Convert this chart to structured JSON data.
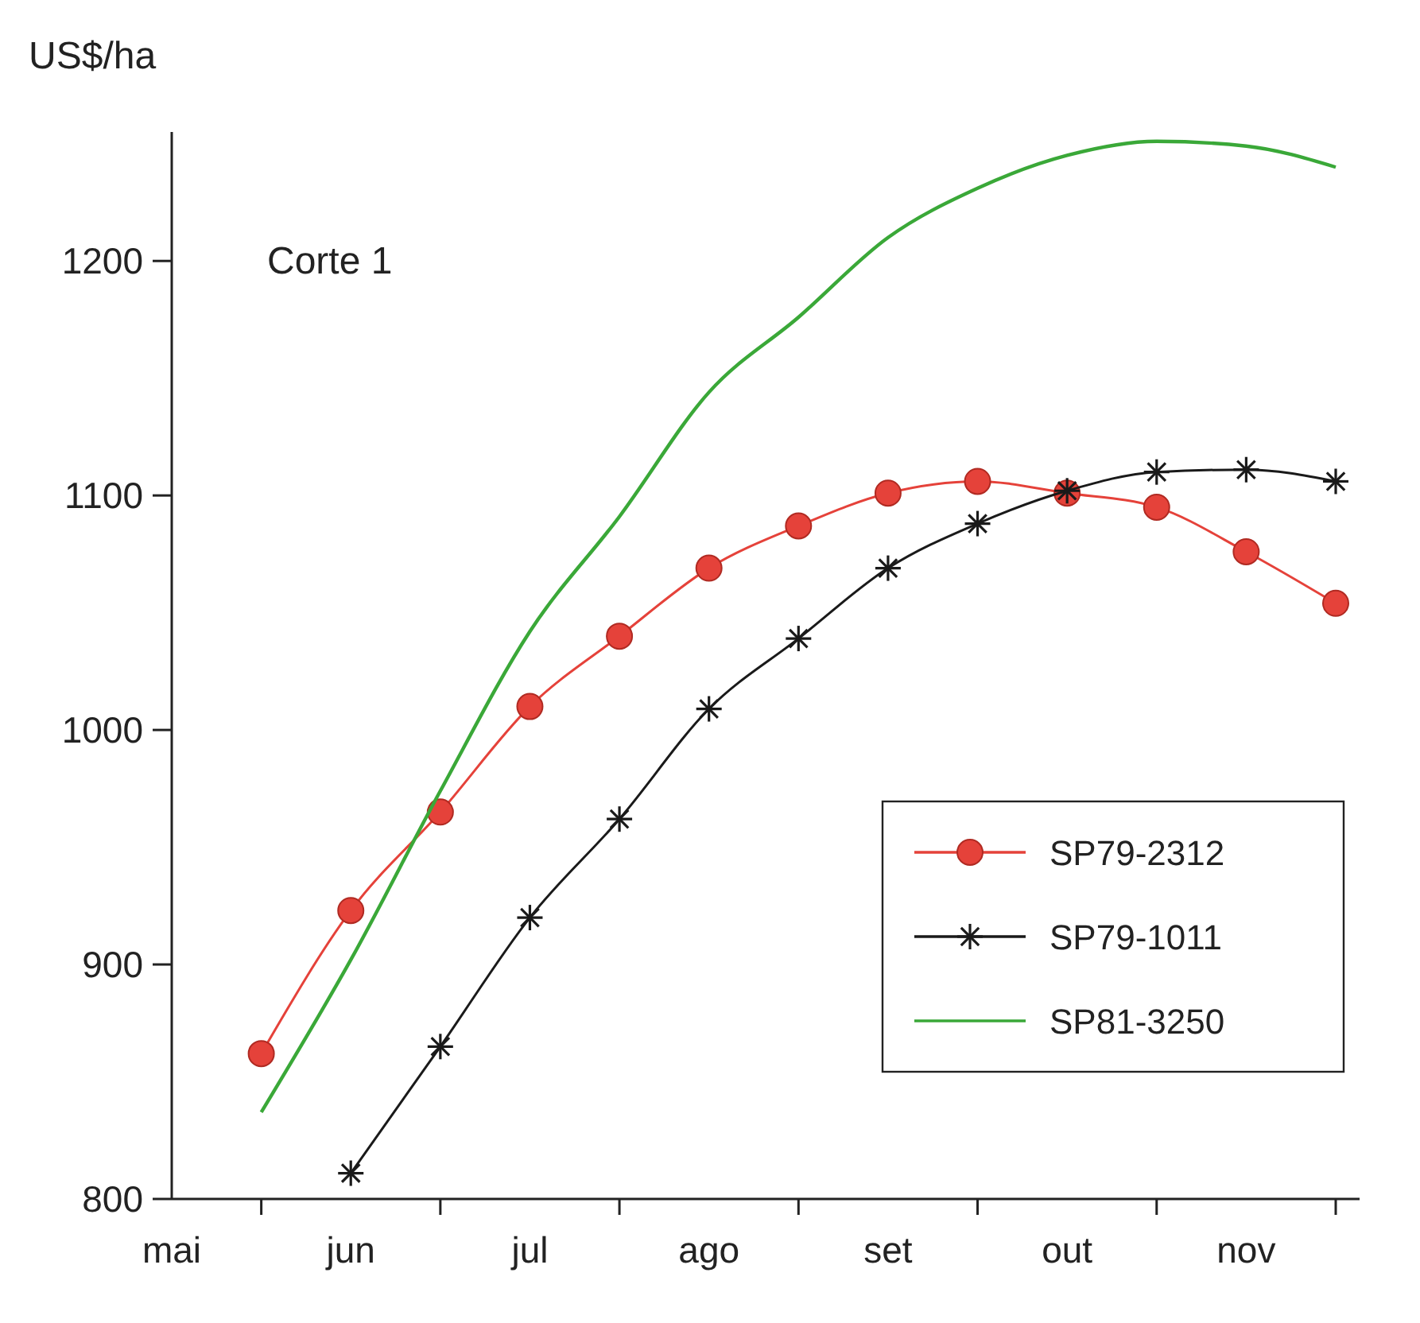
{
  "chart_data": {
    "type": "line",
    "title": "Corte 1",
    "ylabel": "US$/ha",
    "categories": [
      "mai",
      null,
      "jun",
      null,
      "jul",
      null,
      "ago",
      null,
      "set",
      null,
      "out",
      null,
      "nov",
      null
    ],
    "ylim": [
      800,
      1255
    ],
    "yticks": [
      800,
      900,
      1000,
      1100,
      1200
    ],
    "legend": "bottom right",
    "series": [
      {
        "name": "SP79-2312",
        "color": "#e5423a",
        "marker": "circle",
        "values": [
          null,
          862,
          923,
          965,
          1010,
          1040,
          1069,
          1087,
          1101,
          1106,
          1101,
          1095,
          1076,
          1054
        ]
      },
      {
        "name": "SP79-1011",
        "color": "#1a1a1a",
        "marker": "cross",
        "values": [
          null,
          null,
          811,
          865,
          920,
          962,
          1009,
          1039,
          1069,
          1088,
          1102,
          1110,
          1111,
          1106
        ]
      },
      {
        "name": "SP81-3250",
        "color": "#3aa838",
        "marker": "none",
        "values": [
          null,
          837,
          902,
          974,
          1042,
          1091,
          1144,
          1176,
          1210,
          1231,
          1245,
          1251,
          1249,
          1240
        ]
      }
    ]
  }
}
